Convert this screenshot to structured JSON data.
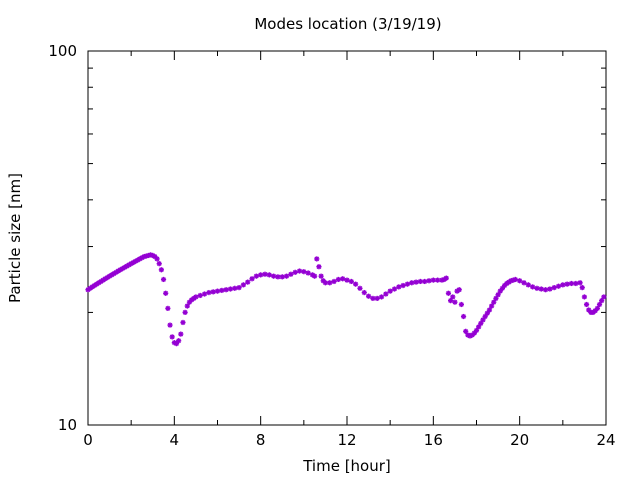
{
  "chart_data": {
    "type": "scatter",
    "title": "Modes location (3/19/19)",
    "xlabel": "Time [hour]",
    "ylabel": "Particle size [nm]",
    "xlim": [
      0,
      24
    ],
    "ylim": [
      10,
      100
    ],
    "yscale": "log",
    "x_ticks": [
      0,
      4,
      8,
      12,
      16,
      20,
      24
    ],
    "x_tick_labels": [
      "0",
      "4",
      "8",
      "12",
      "16",
      "20",
      "24"
    ],
    "y_ticks": [
      10,
      100
    ],
    "y_tick_labels": [
      "10",
      "100"
    ],
    "grid": false,
    "legend": "none",
    "marker": "asterisk",
    "color": "#9400d3",
    "series": [
      {
        "x": [
          0.0,
          0.1,
          0.2,
          0.3,
          0.4,
          0.5,
          0.6,
          0.7,
          0.8,
          0.9,
          1.0,
          1.1,
          1.2,
          1.3,
          1.4,
          1.5,
          1.6,
          1.7,
          1.8,
          1.9,
          2.0,
          2.1,
          2.2,
          2.3,
          2.4,
          2.5,
          2.6,
          2.7,
          2.8,
          2.9,
          3.0,
          3.1,
          3.2,
          3.3,
          3.4,
          3.5,
          3.6,
          3.7,
          3.8,
          3.9,
          4.0,
          4.1,
          4.2,
          4.3,
          4.4,
          4.5,
          4.6,
          4.7,
          4.8,
          4.9,
          5.0,
          5.2,
          5.4,
          5.6,
          5.8,
          6.0,
          6.2,
          6.4,
          6.6,
          6.8,
          7.0,
          7.2,
          7.4,
          7.6,
          7.8,
          8.0,
          8.2,
          8.4,
          8.6,
          8.8,
          9.0,
          9.2,
          9.4,
          9.6,
          9.8,
          10.0,
          10.2,
          10.4,
          10.5,
          10.6,
          10.7,
          10.8,
          10.9,
          11.0,
          11.2,
          11.4,
          11.6,
          11.8,
          12.0,
          12.2,
          12.4,
          12.6,
          12.8,
          13.0,
          13.2,
          13.4,
          13.6,
          13.8,
          14.0,
          14.2,
          14.4,
          14.6,
          14.8,
          15.0,
          15.2,
          15.4,
          15.6,
          15.8,
          16.0,
          16.2,
          16.4,
          16.5,
          16.6,
          16.7,
          16.8,
          16.9,
          17.0,
          17.1,
          17.2,
          17.3,
          17.4,
          17.5,
          17.6,
          17.7,
          17.8,
          17.9,
          18.0,
          18.1,
          18.2,
          18.3,
          18.4,
          18.5,
          18.6,
          18.7,
          18.8,
          18.9,
          19.0,
          19.1,
          19.2,
          19.3,
          19.4,
          19.5,
          19.6,
          19.7,
          19.8,
          20.0,
          20.2,
          20.4,
          20.6,
          20.8,
          21.0,
          21.2,
          21.4,
          21.6,
          21.8,
          22.0,
          22.2,
          22.4,
          22.6,
          22.8,
          22.9,
          23.0,
          23.1,
          23.2,
          23.3,
          23.4,
          23.5,
          23.6,
          23.7,
          23.8,
          23.9
        ],
        "y": [
          23.0,
          23.2,
          23.4,
          23.6,
          23.8,
          24.0,
          24.2,
          24.4,
          24.6,
          24.8,
          25.0,
          25.2,
          25.4,
          25.6,
          25.8,
          26.0,
          26.2,
          26.4,
          26.6,
          26.8,
          27.0,
          27.2,
          27.4,
          27.6,
          27.8,
          28.0,
          28.2,
          28.3,
          28.4,
          28.5,
          28.4,
          28.2,
          27.8,
          27.0,
          26.0,
          24.5,
          22.5,
          20.5,
          18.5,
          17.2,
          16.6,
          16.5,
          16.8,
          17.5,
          18.8,
          20.0,
          20.8,
          21.3,
          21.6,
          21.8,
          22.0,
          22.2,
          22.4,
          22.6,
          22.7,
          22.8,
          22.9,
          23.0,
          23.1,
          23.2,
          23.3,
          23.7,
          24.1,
          24.6,
          25.0,
          25.2,
          25.3,
          25.2,
          25.0,
          24.9,
          24.9,
          25.0,
          25.3,
          25.6,
          25.8,
          25.7,
          25.5,
          25.2,
          25.0,
          27.8,
          26.5,
          25.0,
          24.3,
          24.0,
          24.0,
          24.2,
          24.5,
          24.6,
          24.4,
          24.2,
          23.8,
          23.2,
          22.6,
          22.1,
          21.8,
          21.8,
          22.0,
          22.4,
          22.8,
          23.1,
          23.4,
          23.6,
          23.8,
          24.0,
          24.1,
          24.2,
          24.2,
          24.3,
          24.4,
          24.4,
          24.4,
          24.5,
          24.7,
          22.5,
          21.5,
          22.0,
          21.3,
          22.8,
          23.0,
          21.0,
          19.5,
          17.8,
          17.4,
          17.3,
          17.4,
          17.6,
          17.9,
          18.3,
          18.7,
          19.1,
          19.5,
          19.9,
          20.3,
          20.8,
          21.3,
          21.8,
          22.3,
          22.8,
          23.2,
          23.6,
          23.9,
          24.1,
          24.3,
          24.4,
          24.5,
          24.3,
          24.0,
          23.7,
          23.4,
          23.2,
          23.1,
          23.0,
          23.1,
          23.3,
          23.5,
          23.7,
          23.8,
          23.9,
          23.9,
          24.0,
          23.3,
          22.0,
          21.0,
          20.3,
          20.0,
          20.0,
          20.2,
          20.5,
          21.0,
          21.5,
          22.0
        ]
      }
    ]
  }
}
